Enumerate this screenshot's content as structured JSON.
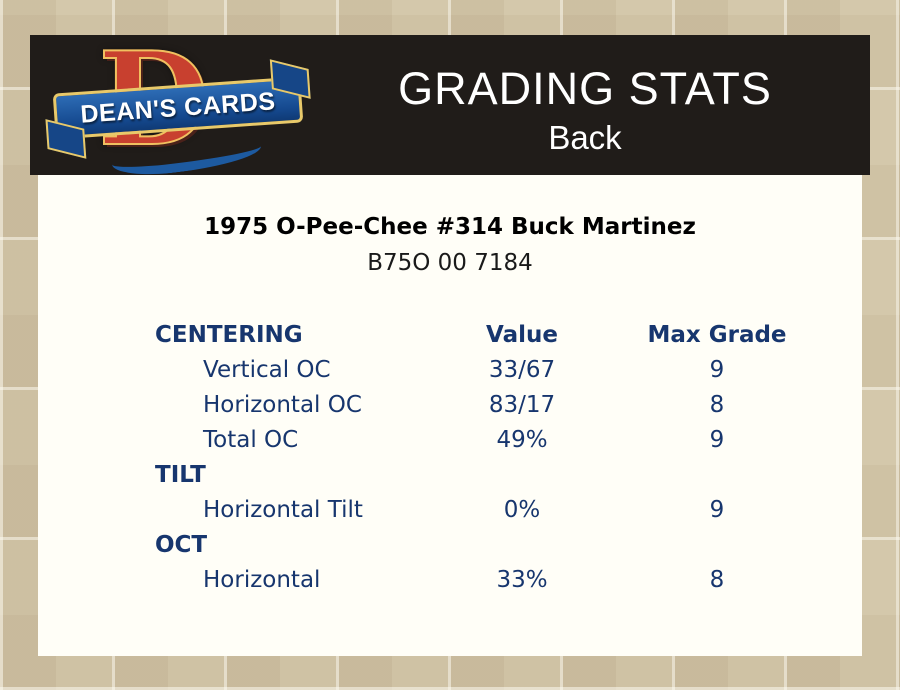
{
  "header": {
    "logo": {
      "monogram": "D",
      "text": "DEAN'S CARDS"
    },
    "title": "GRADING STATS",
    "subtitle": "Back"
  },
  "card": {
    "title": "1975 O-Pee-Chee #314 Buck Martinez",
    "code": "B75O 00 7184"
  },
  "table": {
    "header": {
      "col1": "CENTERING",
      "col2": "Value",
      "col3": "Max Grade"
    },
    "rows": [
      {
        "label": "Vertical OC",
        "value": "33/67",
        "max": "9"
      },
      {
        "label": "Horizontal OC",
        "value": "83/17",
        "max": "8"
      },
      {
        "label": "Total OC",
        "value": "49%",
        "max": "9"
      },
      {
        "label": "TILT",
        "value": "",
        "max": "",
        "type": "section"
      },
      {
        "label": "Horizontal Tilt",
        "value": "0%",
        "max": "9"
      },
      {
        "label": "OCT",
        "value": "",
        "max": "",
        "type": "section"
      },
      {
        "label": "Horizontal",
        "value": "33%",
        "max": "8"
      }
    ]
  },
  "colors": {
    "page_bg": "#d4c8ab",
    "header_bg": "#201c19",
    "panel_bg": "#fffef7",
    "table_text": "#17366e",
    "logo_red": "#c8402f",
    "logo_blue": "#1d5aa0",
    "logo_gold": "#e8c96a"
  }
}
